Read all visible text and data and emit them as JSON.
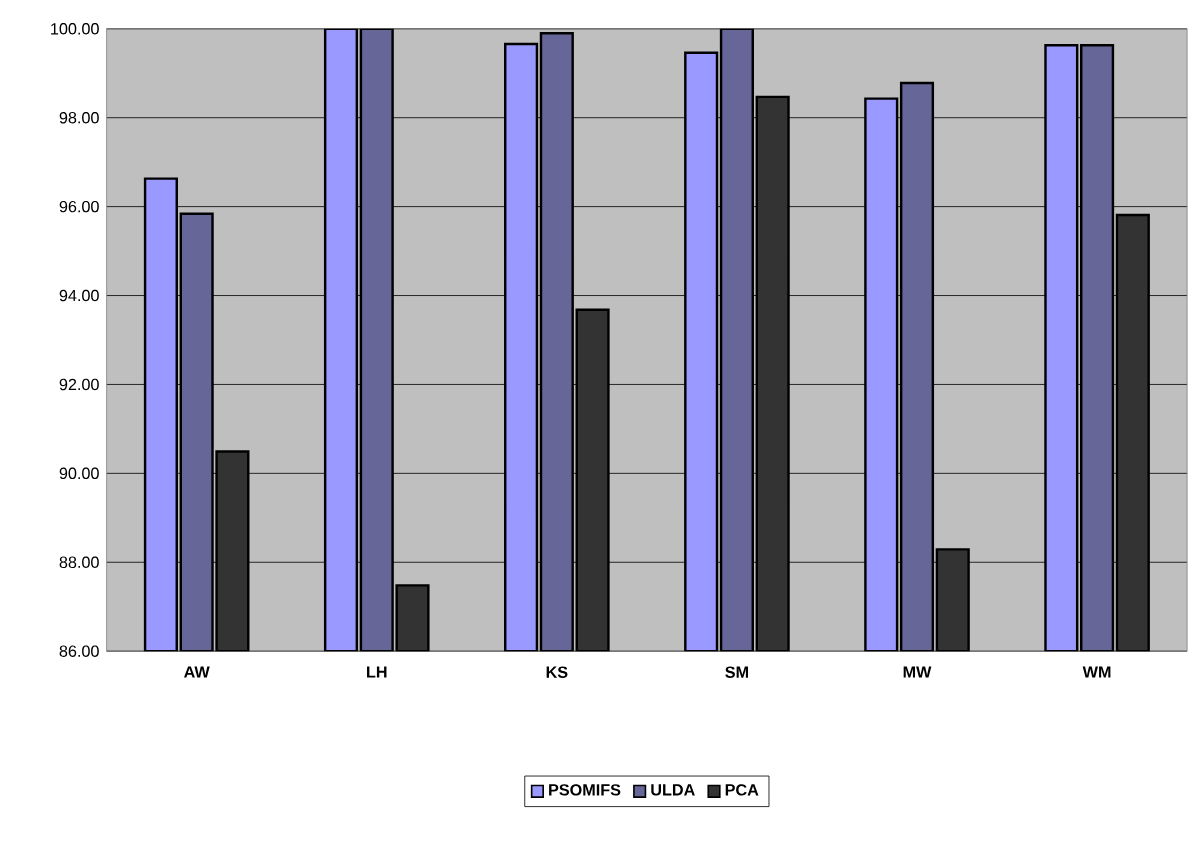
{
  "chart_data": {
    "type": "bar",
    "categories": [
      "AW",
      "LH",
      "KS",
      "SM",
      "MW",
      "WM"
    ],
    "series": [
      {
        "name": "PSOMIFS",
        "color": "#9999ff",
        "values": [
          96.63,
          100.0,
          99.66,
          99.46,
          98.43,
          99.63
        ]
      },
      {
        "name": "ULDA",
        "color": "#666699",
        "values": [
          95.84,
          100.0,
          99.9,
          100.0,
          98.78,
          99.63
        ]
      },
      {
        "name": "PCA",
        "color": "#333333",
        "values": [
          90.49,
          87.48,
          93.68,
          98.47,
          88.29,
          95.81
        ]
      }
    ],
    "ylim": [
      86,
      100
    ],
    "yticks": [
      {
        "value": 86,
        "label": "86.00"
      },
      {
        "value": 88,
        "label": "88.00"
      },
      {
        "value": 90,
        "label": "90.00"
      },
      {
        "value": 92,
        "label": "92.00"
      },
      {
        "value": 94,
        "label": "94.00"
      },
      {
        "value": 96,
        "label": "96.00"
      },
      {
        "value": 98,
        "label": "98.00"
      },
      {
        "value": 100,
        "label": "100.00"
      }
    ],
    "grid": "y",
    "legend": "bottom"
  }
}
